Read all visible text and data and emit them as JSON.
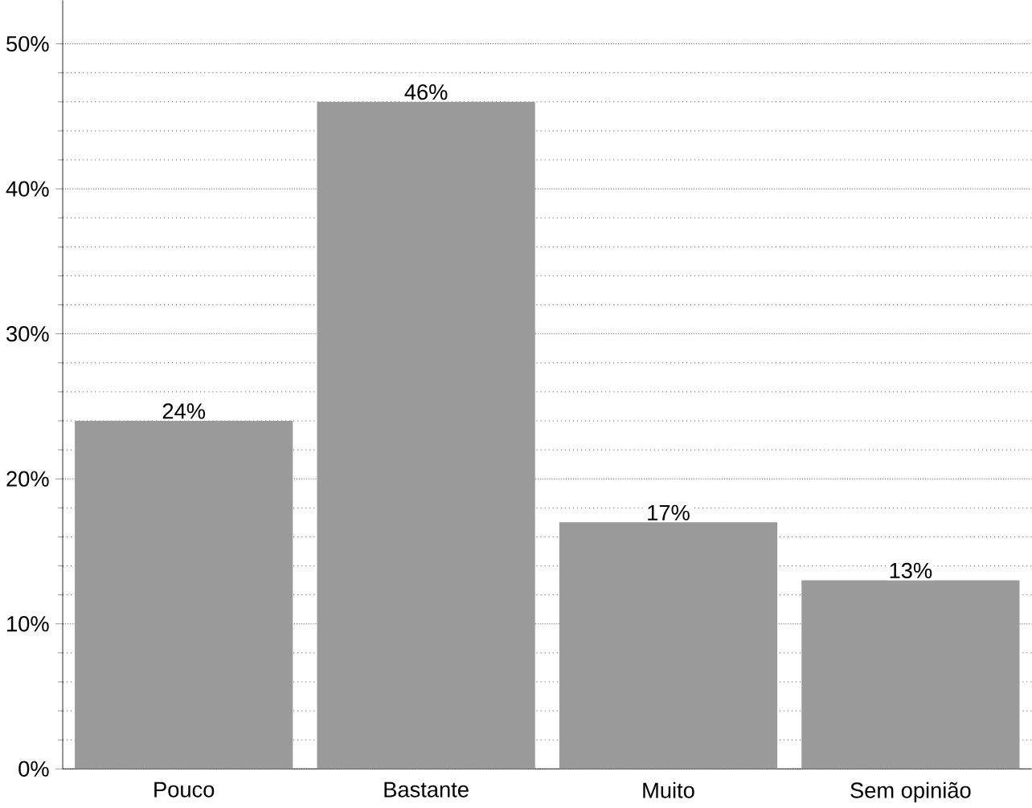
{
  "chart_data": {
    "type": "bar",
    "categories": [
      "Pouco",
      "Bastante",
      "Muito",
      "Sem opinião"
    ],
    "values": [
      24,
      46,
      17,
      13
    ],
    "value_labels": [
      "24%",
      "46%",
      "17%",
      "13%"
    ],
    "color": "#9a9a9a",
    "ylim": [
      0,
      53
    ],
    "yticks": [
      {
        "value": 0,
        "label": "0%"
      },
      {
        "value": 10,
        "label": "10%"
      },
      {
        "value": 20,
        "label": "20%"
      },
      {
        "value": 30,
        "label": "30%"
      },
      {
        "value": 40,
        "label": "40%"
      },
      {
        "value": 50,
        "label": "50%"
      }
    ],
    "grid": "y"
  }
}
